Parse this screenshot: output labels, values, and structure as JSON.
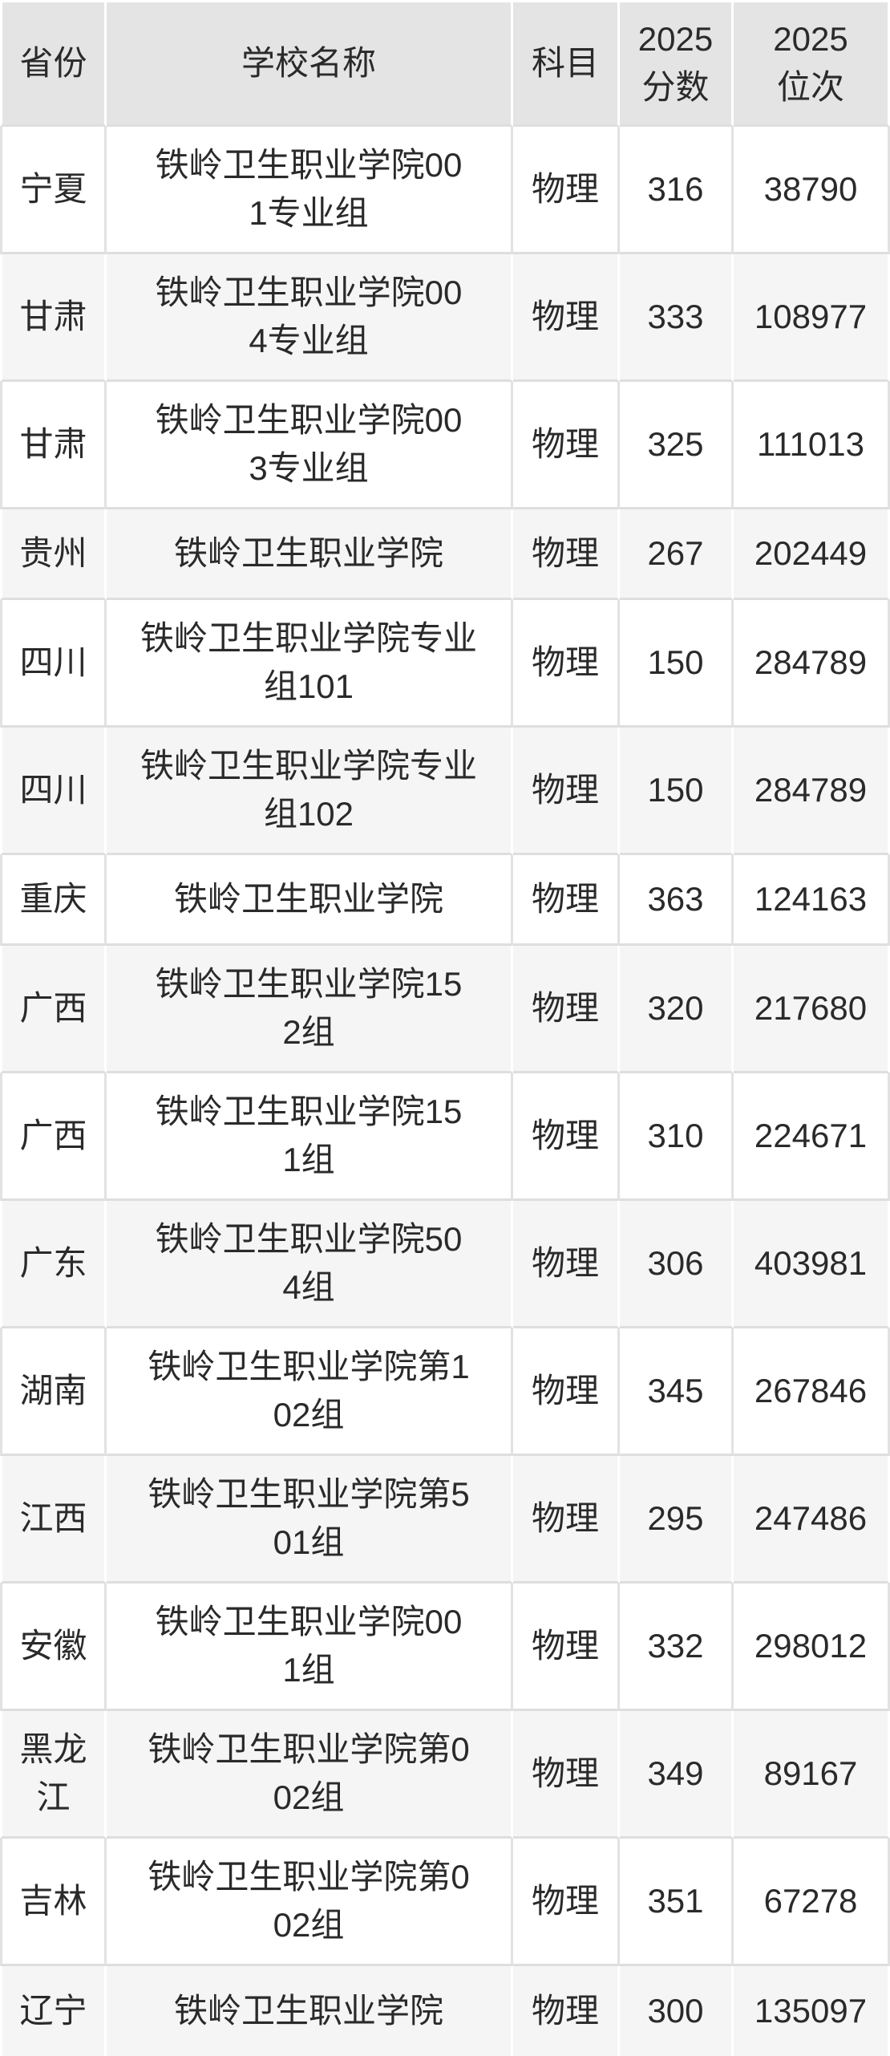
{
  "table": {
    "columns": [
      {
        "key": "province",
        "label": "省份"
      },
      {
        "key": "school",
        "label": "学校名称"
      },
      {
        "key": "subject",
        "label": "科目"
      },
      {
        "key": "score",
        "label": "2025\n分数"
      },
      {
        "key": "rank",
        "label": "2025\n位次"
      }
    ],
    "rows": [
      {
        "province": "宁夏",
        "school": "铁岭卫生职业学院00\n1专业组",
        "subject": "物理",
        "score": "316",
        "rank": "38790"
      },
      {
        "province": "甘肃",
        "school": "铁岭卫生职业学院00\n4专业组",
        "subject": "物理",
        "score": "333",
        "rank": "108977"
      },
      {
        "province": "甘肃",
        "school": "铁岭卫生职业学院00\n3专业组",
        "subject": "物理",
        "score": "325",
        "rank": "111013"
      },
      {
        "province": "贵州",
        "school": "铁岭卫生职业学院",
        "subject": "物理",
        "score": "267",
        "rank": "202449"
      },
      {
        "province": "四川",
        "school": "铁岭卫生职业学院专业\n组101",
        "subject": "物理",
        "score": "150",
        "rank": "284789"
      },
      {
        "province": "四川",
        "school": "铁岭卫生职业学院专业\n组102",
        "subject": "物理",
        "score": "150",
        "rank": "284789"
      },
      {
        "province": "重庆",
        "school": "铁岭卫生职业学院",
        "subject": "物理",
        "score": "363",
        "rank": "124163"
      },
      {
        "province": "广西",
        "school": "铁岭卫生职业学院15\n2组",
        "subject": "物理",
        "score": "320",
        "rank": "217680"
      },
      {
        "province": "广西",
        "school": "铁岭卫生职业学院15\n1组",
        "subject": "物理",
        "score": "310",
        "rank": "224671"
      },
      {
        "province": "广东",
        "school": "铁岭卫生职业学院50\n4组",
        "subject": "物理",
        "score": "306",
        "rank": "403981"
      },
      {
        "province": "湖南",
        "school": "铁岭卫生职业学院第1\n02组",
        "subject": "物理",
        "score": "345",
        "rank": "267846"
      },
      {
        "province": "江西",
        "school": "铁岭卫生职业学院第5\n01组",
        "subject": "物理",
        "score": "295",
        "rank": "247486"
      },
      {
        "province": "安徽",
        "school": "铁岭卫生职业学院00\n1组",
        "subject": "物理",
        "score": "332",
        "rank": "298012"
      },
      {
        "province": "黑龙\n江",
        "school": "铁岭卫生职业学院第0\n02组",
        "subject": "物理",
        "score": "349",
        "rank": "89167"
      },
      {
        "province": "吉林",
        "school": "铁岭卫生职业学院第0\n02组",
        "subject": "物理",
        "score": "351",
        "rank": "67278"
      },
      {
        "province": "辽宁",
        "school": "铁岭卫生职业学院",
        "subject": "物理",
        "score": "300",
        "rank": "135097"
      }
    ]
  },
  "colors": {
    "header_bg": "#e4e4e4",
    "row_white_bg": "#ffffff",
    "row_gray_bg": "#f5f5f5",
    "separator": "#dedede",
    "grid_line_on_white": "#e2e2e2",
    "grid_line_on_gray": "#ffffff",
    "text": "#2a2a2a"
  }
}
